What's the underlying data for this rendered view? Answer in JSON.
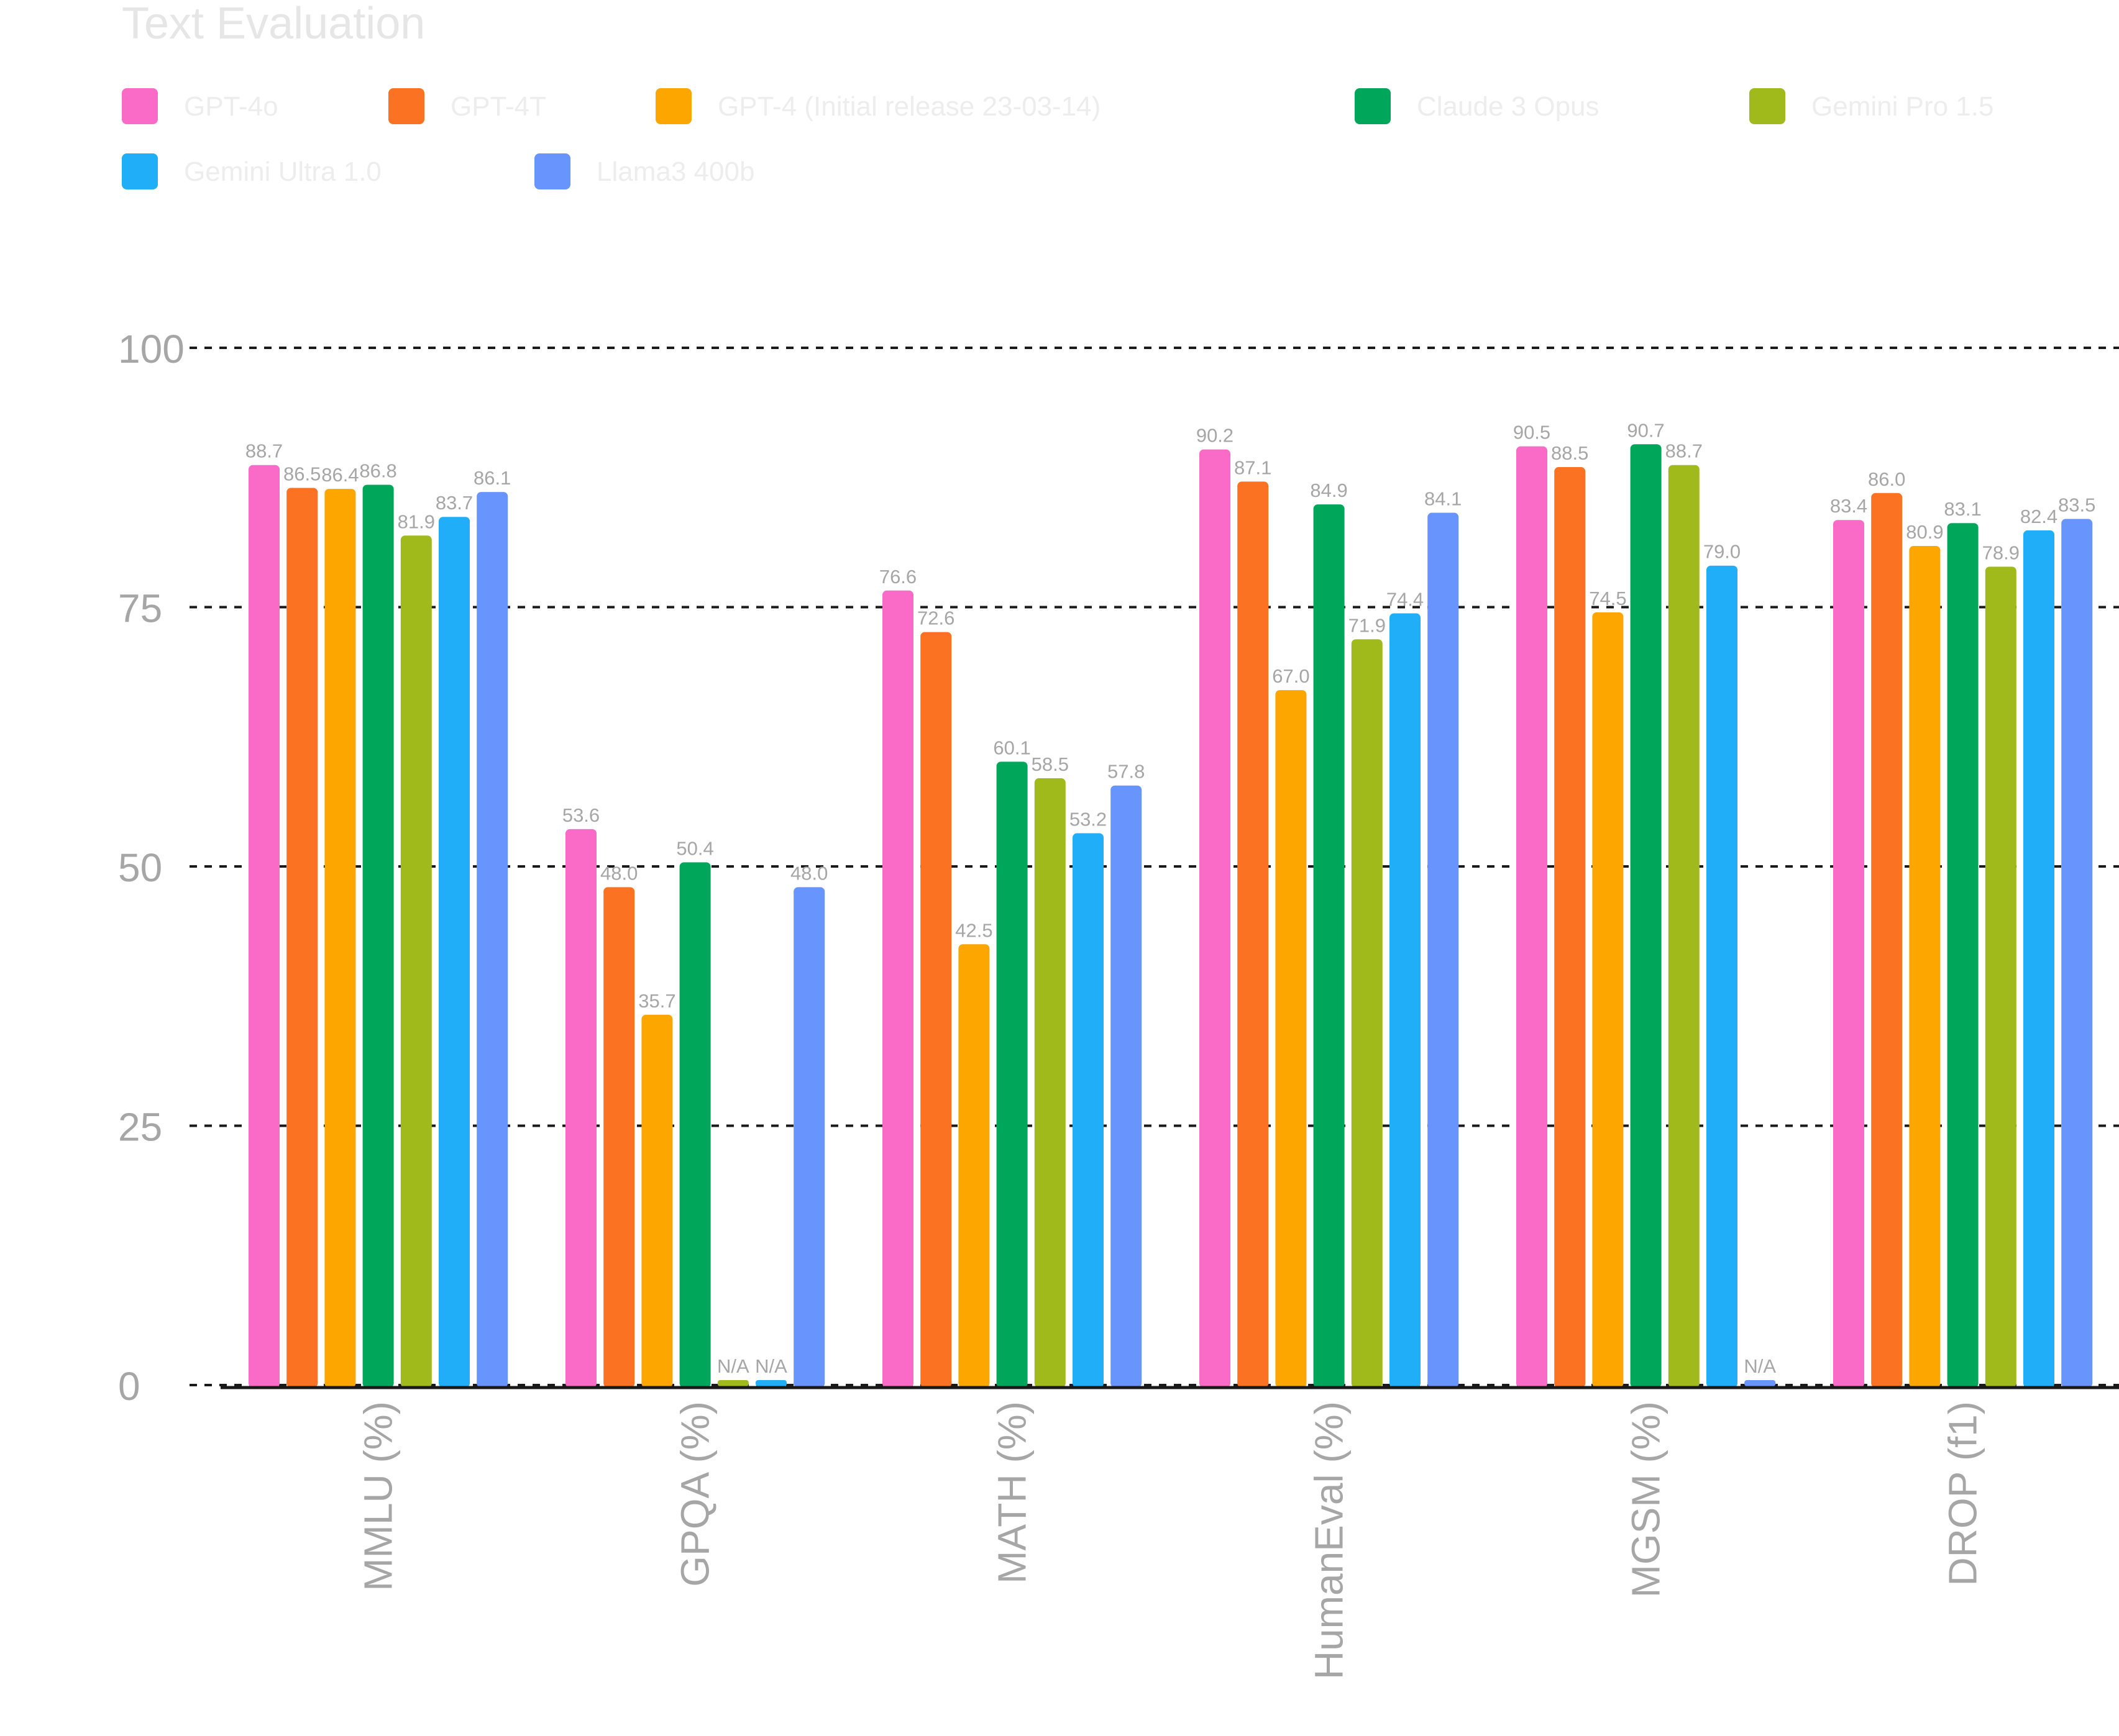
{
  "chart_data": {
    "type": "bar",
    "title": "Text Evaluation",
    "categories": [
      "MMLU (%)",
      "GPQA (%)",
      "MATH (%)",
      "HumanEval (%)",
      "MGSM (%)",
      "DROP (f1)"
    ],
    "series": [
      {
        "name": "GPT-4o",
        "color": "#f96bc7",
        "values": [
          88.7,
          53.6,
          76.6,
          90.2,
          90.5,
          83.4
        ],
        "labels": [
          "88.7",
          "53.6",
          "76.6",
          "90.2",
          "90.5",
          "83.4"
        ]
      },
      {
        "name": "GPT-4T",
        "color": "#fb7222",
        "values": [
          86.5,
          48.0,
          72.6,
          87.1,
          88.5,
          86.0
        ],
        "labels": [
          "86.5",
          "48.0",
          "72.6",
          "87.1",
          "88.5",
          "86.0"
        ]
      },
      {
        "name": "GPT-4 (Initial release 23-03-14)",
        "color": "#fda600",
        "values": [
          86.4,
          35.7,
          42.5,
          67.0,
          74.5,
          80.9
        ],
        "labels": [
          "86.4",
          "35.7",
          "42.5",
          "67.0",
          "74.5",
          "80.9"
        ]
      },
      {
        "name": "Claude 3 Opus",
        "color": "#00a65a",
        "values": [
          86.8,
          50.4,
          60.1,
          84.9,
          90.7,
          83.1
        ],
        "labels": [
          "86.8",
          "50.4",
          "60.1",
          "84.9",
          "90.7",
          "83.1"
        ]
      },
      {
        "name": "Gemini Pro 1.5",
        "color": "#a1ba1b",
        "values": [
          81.9,
          0,
          58.5,
          71.9,
          88.7,
          78.9
        ],
        "labels": [
          "81.9",
          "N/A",
          "58.5",
          "71.9",
          "88.7",
          "78.9"
        ]
      },
      {
        "name": "Gemini Ultra 1.0",
        "color": "#20aef9",
        "values": [
          83.7,
          0,
          53.2,
          74.4,
          79.0,
          82.4
        ],
        "labels": [
          "83.7",
          "N/A",
          "53.2",
          "74.4",
          "79.0",
          "82.4"
        ]
      },
      {
        "name": "Llama3 400b",
        "color": "#6795fd",
        "values": [
          86.1,
          48.0,
          57.8,
          84.1,
          0,
          83.5
        ],
        "labels": [
          "86.1",
          "48.0",
          "57.8",
          "84.1",
          "N/A",
          "83.5"
        ]
      }
    ],
    "xlabel": "",
    "ylabel": "",
    "ylim": [
      0,
      100
    ],
    "yticks": [
      0,
      25,
      50,
      75,
      100
    ],
    "grid": true,
    "legend_position": "top-left"
  }
}
